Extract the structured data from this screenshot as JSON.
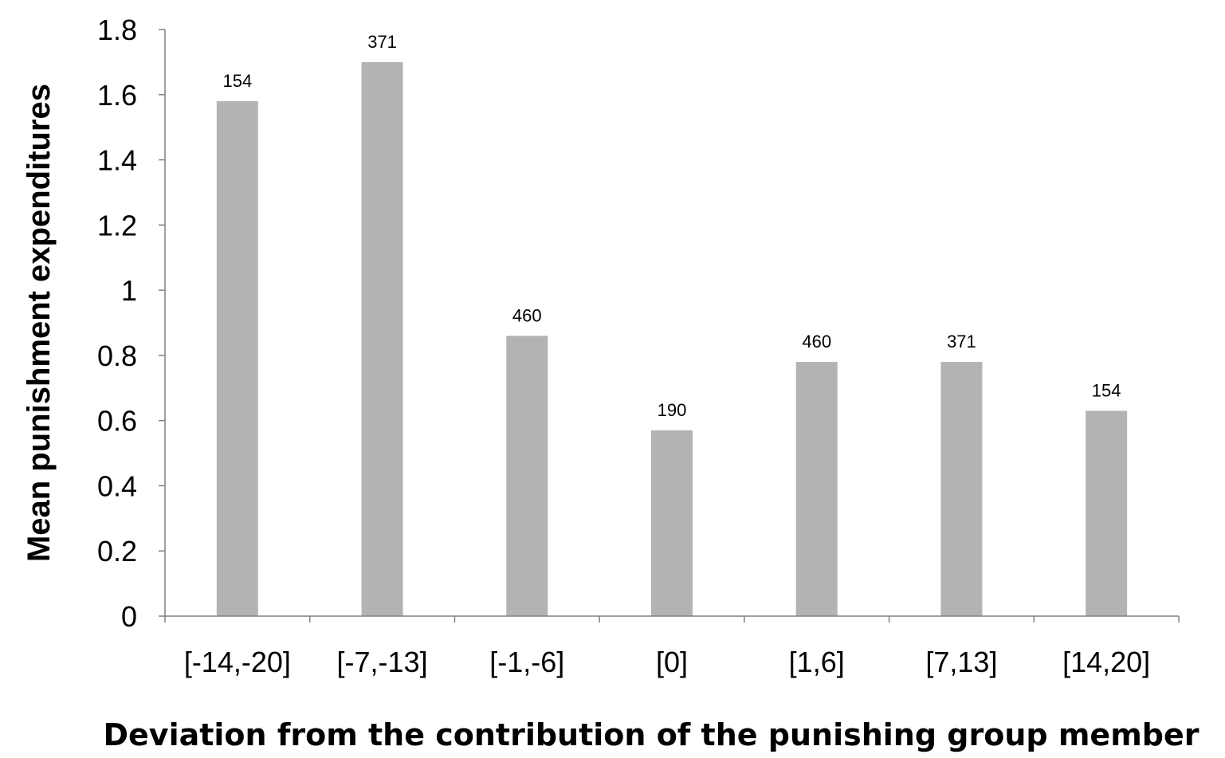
{
  "chart_data": {
    "type": "bar",
    "title": "",
    "xlabel": "Deviation from the contribution of the punishing group member",
    "ylabel": "Mean punishment expenditures",
    "categories": [
      "[-14,-20]",
      "[-7,-13]",
      "[-1,-6]",
      "[0]",
      "[1,6]",
      "[7,13]",
      "[14,20]"
    ],
    "values": [
      1.58,
      1.7,
      0.86,
      0.57,
      0.78,
      0.78,
      0.63
    ],
    "data_labels": [
      "154",
      "371",
      "460",
      "190",
      "460",
      "371",
      "154"
    ],
    "ylim": [
      0,
      1.8
    ],
    "yticks": [
      "0",
      "0.2",
      "0.4",
      "0.6",
      "0.8",
      "1",
      "1.2",
      "1.4",
      "1.6",
      "1.8"
    ],
    "grid": false,
    "legend": "none",
    "bar_color": "#b3b3b3"
  }
}
